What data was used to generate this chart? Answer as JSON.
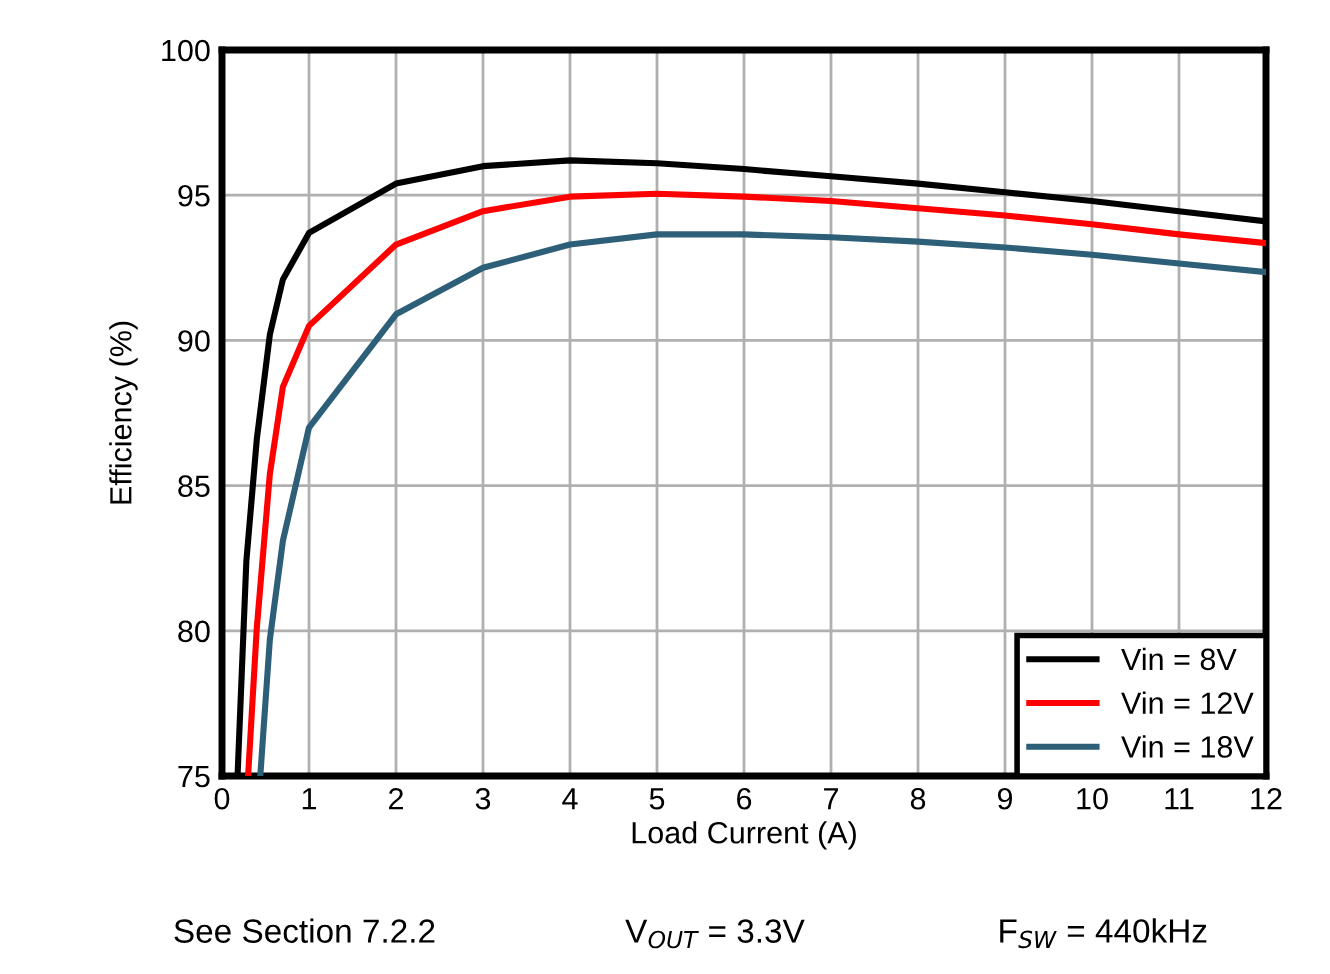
{
  "chart_data": {
    "type": "line",
    "xlabel": "Load Current (A)",
    "ylabel": "Efficiency (%)",
    "xlim": [
      0,
      12
    ],
    "xticks": [
      0,
      1,
      2,
      3,
      4,
      5,
      6,
      7,
      8,
      9,
      10,
      11,
      12
    ],
    "ylim": [
      75,
      100
    ],
    "yticks": [
      75,
      80,
      85,
      90,
      95,
      100
    ],
    "grid": true,
    "legend": "bottom right",
    "marker": "none",
    "line_style": "solid",
    "series": [
      {
        "name": "Vin = 8V",
        "color": "#000000",
        "x": [
          0.18,
          0.28,
          0.4,
          0.55,
          0.7,
          1,
          2,
          3,
          4,
          5,
          6,
          7,
          8,
          9,
          10,
          11,
          12
        ],
        "values": [
          75.1,
          82.4,
          86.6,
          90.2,
          92.1,
          93.7,
          95.4,
          96.0,
          96.2,
          96.1,
          95.9,
          95.65,
          95.4,
          95.1,
          94.8,
          94.45,
          94.1
        ]
      },
      {
        "name": "Vin = 12V",
        "color": "#ff0000",
        "x": [
          0.3,
          0.4,
          0.55,
          0.7,
          1,
          2,
          3,
          4,
          5,
          6,
          7,
          8,
          9,
          10,
          11,
          12
        ],
        "values": [
          75.0,
          80.1,
          85.4,
          88.4,
          90.5,
          93.3,
          94.45,
          94.95,
          95.05,
          94.95,
          94.8,
          94.55,
          94.3,
          94.0,
          93.65,
          93.35
        ]
      },
      {
        "name": "Vin = 18V",
        "color": "#2e5f78",
        "x": [
          0.44,
          0.55,
          0.7,
          1,
          2,
          3,
          4,
          5,
          6,
          7,
          8,
          9,
          10,
          11,
          12
        ],
        "values": [
          75.0,
          79.7,
          83.1,
          87.0,
          90.9,
          92.5,
          93.3,
          93.65,
          93.65,
          93.55,
          93.4,
          93.2,
          92.95,
          92.65,
          92.35
        ]
      }
    ],
    "annotations": [
      "See Section 7.2.2",
      "V$_{OUT}$ = 3.3V",
      "F$_{SW}$ = 440kHz"
    ]
  }
}
